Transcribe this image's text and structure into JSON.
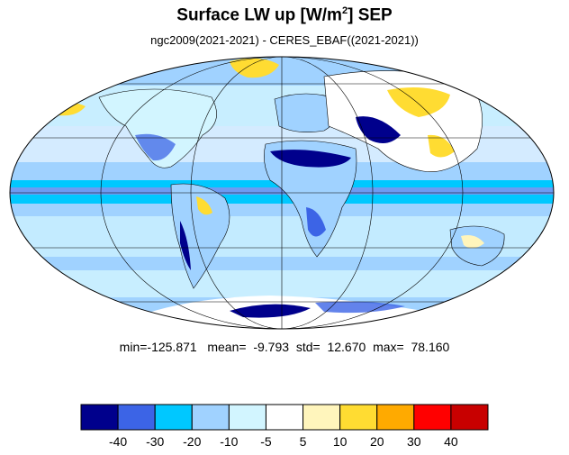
{
  "title": {
    "prefix": "Surface LW up [W/m",
    "superscript": "2",
    "suffix": "]  SEP"
  },
  "subtitle": "ngc2009(2021-2021) - CERES_EBAF((2021-2021))",
  "stats": {
    "min_label": "min=",
    "min": "-125.871",
    "mean_label": "mean=",
    "mean": "-9.793",
    "std_label": "std=",
    "std": "12.670",
    "max_label": "max=",
    "max": "78.160"
  },
  "colorbar": {
    "colors": [
      "#00008c",
      "#3c64e6",
      "#00c8ff",
      "#a0d2ff",
      "#d2f5ff",
      "#ffffff",
      "#fff5bc",
      "#ffdc32",
      "#ffaa00",
      "#ff0000",
      "#c80000"
    ],
    "labels": [
      "-40",
      "-30",
      "-20",
      "-10",
      "-5",
      "5",
      "10",
      "20",
      "30",
      "40"
    ]
  },
  "map": {
    "projection": "Mollweide",
    "ocean_color": "#a0d2ff",
    "coast_color": "#000000",
    "grid_color": "#000000"
  }
}
